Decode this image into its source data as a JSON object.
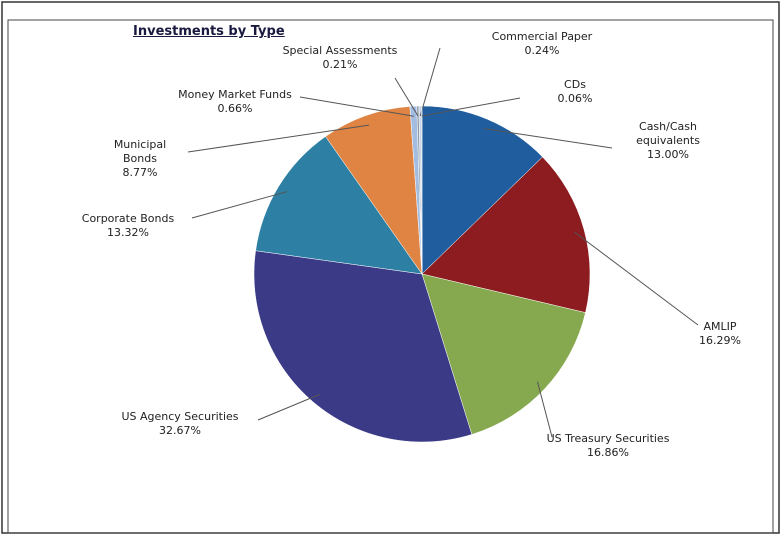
{
  "chart_data": {
    "type": "pie",
    "title": "Investments by Type",
    "categories": [
      "Cash/Cash equivalents",
      "AMLIP",
      "US Treasury Securities",
      "US Agency Securities",
      "Corporate Bonds",
      "Municipal Bonds",
      "Money Market Funds",
      "Special Assessments",
      "Commercial Paper",
      "CDs"
    ],
    "values": [
      13.0,
      16.29,
      16.86,
      32.67,
      13.32,
      8.77,
      0.66,
      0.21,
      0.24,
      0.06
    ],
    "value_labels": [
      "13.00%",
      "16.29%",
      "16.86%",
      "32.67%",
      "13.32%",
      "8.77%",
      "0.66%",
      "0.21%",
      "0.24%",
      "0.06%"
    ],
    "colors": [
      "#1f5d9e",
      "#8c1c1f",
      "#86a84e",
      "#3a3a86",
      "#2d80a3",
      "#df8443",
      "#a3bde0",
      "#8e9aa8",
      "#c7d4e6",
      "#5b7fb0"
    ]
  }
}
